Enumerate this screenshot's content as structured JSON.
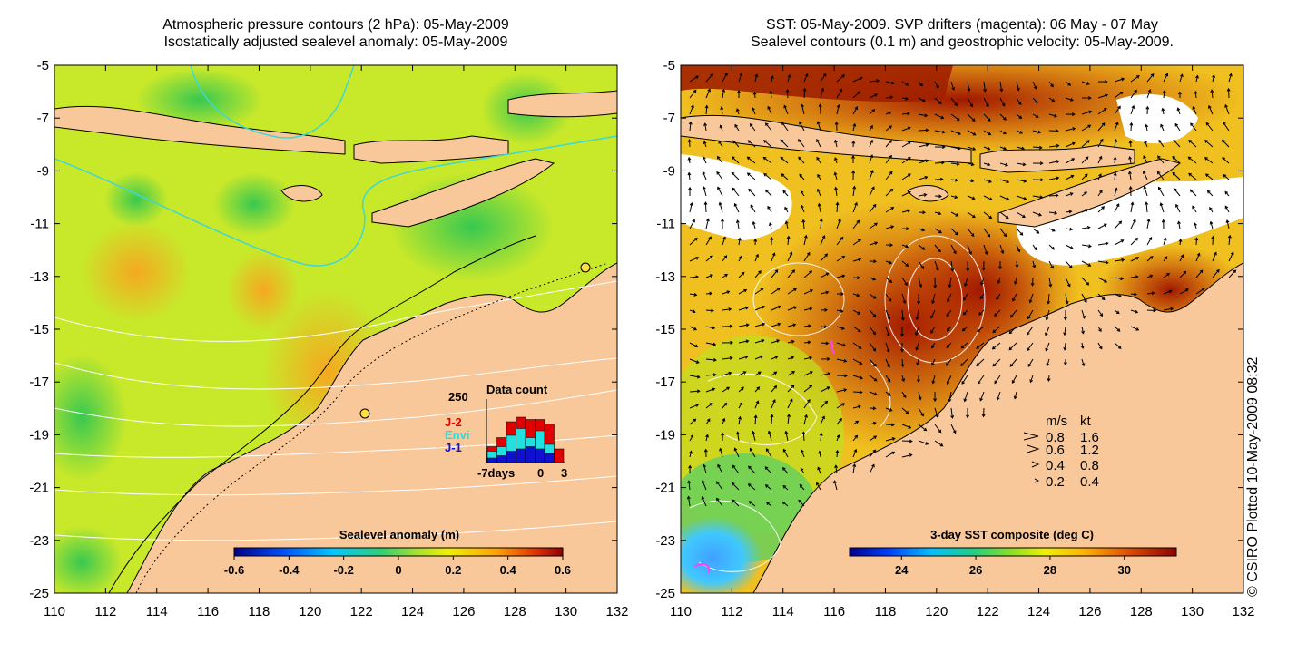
{
  "left_panel": {
    "title_line1": "Atmospheric pressure contours (2 hPa): 05-May-2009",
    "title_line2": "Isostatically adjusted sealevel anomaly: 05-May-2009",
    "colorbar_title": "Sealevel anomaly (m)",
    "colorbar_ticks": [
      "-0.6",
      "-0.4",
      "-0.2",
      "0",
      "0.2",
      "0.4",
      "0.6"
    ],
    "inset": {
      "title": "Data count",
      "y_max_label": "250",
      "x_labels": [
        "-7days",
        "0",
        "3"
      ],
      "legend": [
        {
          "label": "J-2",
          "color": "#e00000"
        },
        {
          "label": "Envi",
          "color": "#20e0e0"
        },
        {
          "label": "J-1",
          "color": "#1010d0"
        }
      ],
      "bars": [
        {
          "red": 0.35,
          "cyan": 0.25,
          "blue": 0.1
        },
        {
          "red": 0.55,
          "cyan": 0.35,
          "blue": 0.15
        },
        {
          "red": 0.9,
          "cyan": 0.6,
          "blue": 0.25
        },
        {
          "red": 1.0,
          "cyan": 0.75,
          "blue": 0.3
        },
        {
          "red": 0.95,
          "cyan": 0.55,
          "blue": 0.35
        },
        {
          "red": 0.95,
          "cyan": 0.7,
          "blue": 0.3
        },
        {
          "red": 0.85,
          "cyan": 0.4,
          "blue": 0.2
        },
        {
          "red": 0.3,
          "cyan": 0.0,
          "blue": 0.0
        }
      ]
    }
  },
  "right_panel": {
    "title_line1": "SST: 05-May-2009. SVP drifters (magenta): 06 May - 07 May",
    "title_line2": "Sealevel contours (0.1 m) and geostrophic velocity: 05-May-2009.",
    "colorbar_title": "3-day SST composite (deg C)",
    "colorbar_ticks": [
      "24",
      "26",
      "28",
      "30"
    ],
    "velocity_legend": {
      "header_ms": "m/s",
      "header_kt": "kt",
      "rows": [
        {
          "ms": "0.8",
          "kt": "1.6"
        },
        {
          "ms": "0.6",
          "kt": "1.2"
        },
        {
          "ms": "0.4",
          "kt": "0.8"
        },
        {
          "ms": "0.2",
          "kt": "0.4"
        }
      ]
    }
  },
  "axes": {
    "y_ticks": [
      "-5",
      "-7",
      "-9",
      "-11",
      "-13",
      "-15",
      "-17",
      "-19",
      "-21",
      "-23",
      "-25"
    ],
    "x_ticks": [
      "110",
      "112",
      "114",
      "116",
      "118",
      "120",
      "122",
      "124",
      "126",
      "128",
      "130",
      "132"
    ]
  },
  "credit": "© CSIRO Plotted 10-May-2009 08:32",
  "colors": {
    "land": "#f9c89a",
    "white_cloud": "#ffffff",
    "contour_white": "#ffffff",
    "contour_cyan": "#3fd6d6"
  }
}
